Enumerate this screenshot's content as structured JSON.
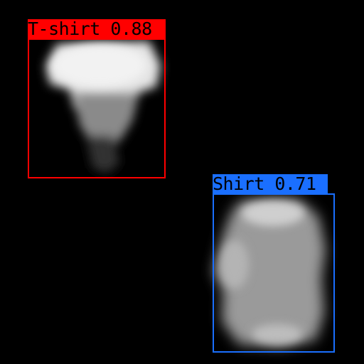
{
  "detections": [
    {
      "label": "T-shirt",
      "score": "0.88",
      "color": "#ff0000"
    },
    {
      "label": "Shirt",
      "score": "0.71",
      "color": "#1a6fff"
    }
  ]
}
